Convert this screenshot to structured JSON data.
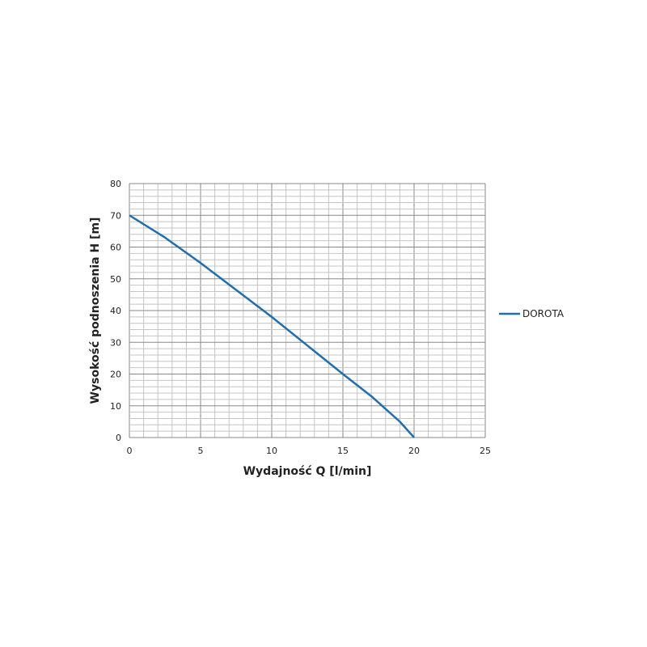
{
  "chart_data": {
    "type": "line",
    "title": "",
    "xlabel": "Wydajność Q [l/min]",
    "ylabel": "Wysokość podnoszenia H [m]",
    "xlim": [
      0,
      25
    ],
    "ylim": [
      0,
      80
    ],
    "x_ticks": [
      "0",
      "5",
      "10",
      "15",
      "20",
      "25"
    ],
    "y_ticks": [
      "0",
      "10",
      "20",
      "30",
      "40",
      "50",
      "60",
      "70",
      "80"
    ],
    "grid": true,
    "legend_position": "right",
    "series": [
      {
        "name": "DOROTA",
        "color": "#1f6fb0",
        "x": [
          0,
          2.5,
          5,
          7.5,
          10,
          12.5,
          15,
          17,
          18,
          19,
          20
        ],
        "y": [
          70,
          63,
          55,
          46.5,
          38,
          29,
          20,
          13,
          9,
          5,
          0
        ]
      }
    ]
  }
}
